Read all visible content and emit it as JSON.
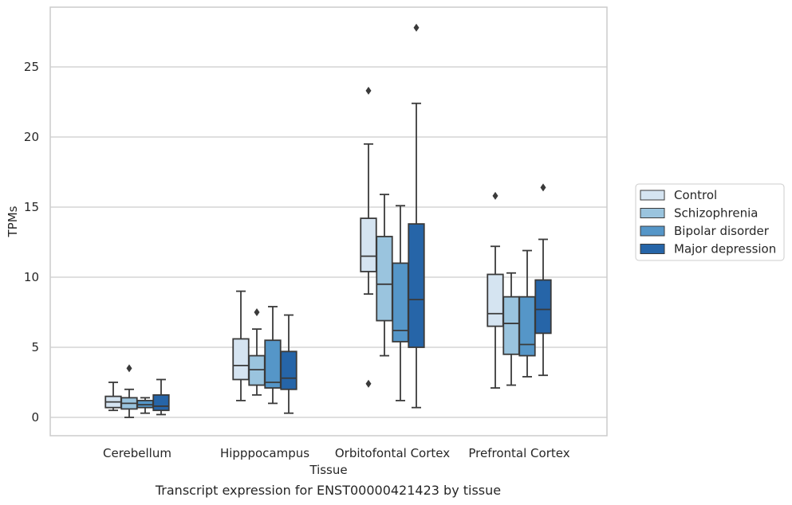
{
  "caption": "Transcript expression for ENST00000421423 by tissue",
  "chart_data": {
    "type": "box",
    "xlabel": "Tissue",
    "ylabel": "TPMs",
    "ylim": [
      -1.3,
      29.2
    ],
    "yticks": [
      0,
      5,
      10,
      15,
      20,
      25
    ],
    "grid": "horizontal",
    "legend_position": "right",
    "categories": [
      "Cerebellum",
      "Hipppocampus",
      "Orbitofontal Cortex",
      "Prefrontal Cortex"
    ],
    "series": [
      {
        "name": "Control",
        "color": "#d5e4f1",
        "boxes": [
          {
            "whisker_low": 0.5,
            "q1": 0.7,
            "median": 1.1,
            "q3": 1.5,
            "whisker_high": 2.5,
            "outliers": []
          },
          {
            "whisker_low": 1.2,
            "q1": 2.7,
            "median": 3.7,
            "q3": 5.6,
            "whisker_high": 9.0,
            "outliers": []
          },
          {
            "whisker_low": 8.8,
            "q1": 10.4,
            "median": 11.5,
            "q3": 14.2,
            "whisker_high": 19.5,
            "outliers": [
              23.3,
              2.4
            ]
          },
          {
            "whisker_low": 2.1,
            "q1": 6.5,
            "median": 7.4,
            "q3": 10.2,
            "whisker_high": 12.2,
            "outliers": [
              15.8
            ]
          }
        ]
      },
      {
        "name": "Schizophrenia",
        "color": "#9ac4de",
        "boxes": [
          {
            "whisker_low": 0.0,
            "q1": 0.6,
            "median": 1.0,
            "q3": 1.4,
            "whisker_high": 2.0,
            "outliers": [
              3.5
            ]
          },
          {
            "whisker_low": 1.6,
            "q1": 2.3,
            "median": 3.4,
            "q3": 4.4,
            "whisker_high": 6.3,
            "outliers": [
              7.5
            ]
          },
          {
            "whisker_low": 4.4,
            "q1": 6.9,
            "median": 9.5,
            "q3": 12.9,
            "whisker_high": 15.9,
            "outliers": []
          },
          {
            "whisker_low": 2.3,
            "q1": 4.5,
            "median": 6.7,
            "q3": 8.6,
            "whisker_high": 10.3,
            "outliers": []
          }
        ]
      },
      {
        "name": "Bipolar disorder",
        "color": "#5596c8",
        "boxes": [
          {
            "whisker_low": 0.3,
            "q1": 0.7,
            "median": 0.9,
            "q3": 1.2,
            "whisker_high": 1.4,
            "outliers": []
          },
          {
            "whisker_low": 1.0,
            "q1": 2.1,
            "median": 2.5,
            "q3": 5.5,
            "whisker_high": 7.9,
            "outliers": []
          },
          {
            "whisker_low": 1.2,
            "q1": 5.4,
            "median": 6.2,
            "q3": 11.0,
            "whisker_high": 15.1,
            "outliers": []
          },
          {
            "whisker_low": 2.9,
            "q1": 4.4,
            "median": 5.2,
            "q3": 8.6,
            "whisker_high": 11.9,
            "outliers": []
          }
        ]
      },
      {
        "name": "Major depression",
        "color": "#2665a8",
        "boxes": [
          {
            "whisker_low": 0.2,
            "q1": 0.5,
            "median": 0.8,
            "q3": 1.6,
            "whisker_high": 2.7,
            "outliers": []
          },
          {
            "whisker_low": 0.3,
            "q1": 2.0,
            "median": 2.8,
            "q3": 4.7,
            "whisker_high": 7.3,
            "outliers": []
          },
          {
            "whisker_low": 0.7,
            "q1": 5.0,
            "median": 8.4,
            "q3": 13.8,
            "whisker_high": 22.4,
            "outliers": [
              27.8
            ]
          },
          {
            "whisker_low": 3.0,
            "q1": 6.0,
            "median": 7.7,
            "q3": 9.8,
            "whisker_high": 12.7,
            "outliers": [
              16.4
            ]
          }
        ]
      }
    ]
  }
}
